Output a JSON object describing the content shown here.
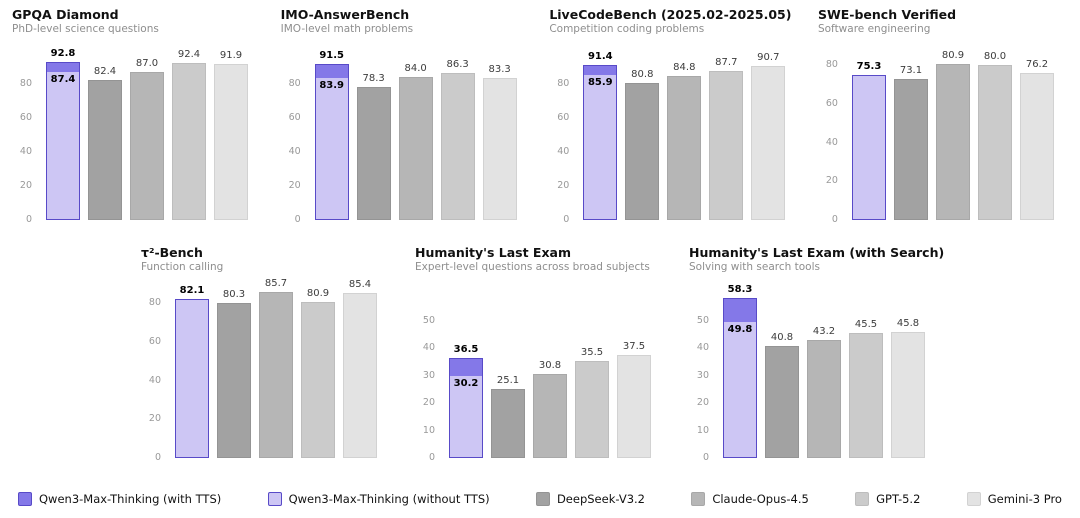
{
  "colors": {
    "background": "#ffffff",
    "purple_fill_light": "#cdc6f4",
    "purple_fill_dark": "#8478e8",
    "purple_border": "#584ac8"
  },
  "legend": [
    {
      "label": "Qwen3-Max-Thinking (with TTS)",
      "color": "#8478e8",
      "border": "#584ac8"
    },
    {
      "label": "Qwen3-Max-Thinking (without TTS)",
      "color": "#cdc6f4",
      "border": "#584ac8"
    },
    {
      "label": "DeepSeek-V3.2",
      "color": "#a2a2a2",
      "border": "#949494"
    },
    {
      "label": "Claude-Opus-4.5",
      "color": "#b6b6b6",
      "border": "#a8a8a8"
    },
    {
      "label": "GPT-5.2",
      "color": "#cbcbcb",
      "border": "#bdbdbd"
    },
    {
      "label": "Gemini-3 Pro",
      "color": "#e3e3e3",
      "border": "#d2d2d2"
    }
  ],
  "chart_data": [
    {
      "type": "bar",
      "title": "GPQA Diamond",
      "subtitle": "PhD-level science questions",
      "ylim": [
        0,
        100
      ],
      "ticks": [
        0,
        20,
        40,
        60,
        80
      ],
      "series": [
        {
          "name": "Qwen3-Max-Thinking (with TTS)",
          "value": 92.8
        },
        {
          "name": "Qwen3-Max-Thinking (without TTS)",
          "value": 87.4
        },
        {
          "name": "DeepSeek-V3.2",
          "value": 82.4
        },
        {
          "name": "Claude-Opus-4.5",
          "value": 87.0
        },
        {
          "name": "GPT-5.2",
          "value": 92.4
        },
        {
          "name": "Gemini-3 Pro",
          "value": 91.9
        }
      ]
    },
    {
      "type": "bar",
      "title": "IMO-AnswerBench",
      "subtitle": "IMO-level math problems",
      "ylim": [
        0,
        100
      ],
      "ticks": [
        0,
        20,
        40,
        60,
        80
      ],
      "series": [
        {
          "name": "Qwen3-Max-Thinking (with TTS)",
          "value": 91.5
        },
        {
          "name": "Qwen3-Max-Thinking (without TTS)",
          "value": 83.9
        },
        {
          "name": "DeepSeek-V3.2",
          "value": 78.3
        },
        {
          "name": "Claude-Opus-4.5",
          "value": 84.0
        },
        {
          "name": "GPT-5.2",
          "value": 86.3
        },
        {
          "name": "Gemini-3 Pro",
          "value": 83.3
        }
      ]
    },
    {
      "type": "bar",
      "title": "LiveCodeBench (2025.02-2025.05)",
      "subtitle": "Competition coding problems",
      "ylim": [
        0,
        100
      ],
      "ticks": [
        0,
        20,
        40,
        60,
        80
      ],
      "series": [
        {
          "name": "Qwen3-Max-Thinking (with TTS)",
          "value": 91.4
        },
        {
          "name": "Qwen3-Max-Thinking (without TTS)",
          "value": 85.9
        },
        {
          "name": "DeepSeek-V3.2",
          "value": 80.8
        },
        {
          "name": "Claude-Opus-4.5",
          "value": 84.8
        },
        {
          "name": "GPT-5.2",
          "value": 87.7
        },
        {
          "name": "Gemini-3 Pro",
          "value": 90.7
        }
      ]
    },
    {
      "type": "bar",
      "title": "SWE-bench Verified",
      "subtitle": "Software engineering",
      "ylim": [
        0,
        88
      ],
      "ticks": [
        0,
        20,
        40,
        60,
        80
      ],
      "series": [
        {
          "name": "Qwen3-Max-Thinking (with TTS)",
          "value": null
        },
        {
          "name": "Qwen3-Max-Thinking (without TTS)",
          "value": 75.3
        },
        {
          "name": "DeepSeek-V3.2",
          "value": 73.1
        },
        {
          "name": "Claude-Opus-4.5",
          "value": 80.9
        },
        {
          "name": "GPT-5.2",
          "value": 80.0
        },
        {
          "name": "Gemini-3 Pro",
          "value": 76.2
        }
      ]
    },
    {
      "type": "bar",
      "title": "τ²-Bench",
      "subtitle": "Function calling",
      "ylim": [
        0,
        88
      ],
      "ticks": [
        0,
        20,
        40,
        60,
        80
      ],
      "series": [
        {
          "name": "Qwen3-Max-Thinking (with TTS)",
          "value": null
        },
        {
          "name": "Qwen3-Max-Thinking (without TTS)",
          "value": 82.1
        },
        {
          "name": "DeepSeek-V3.2",
          "value": 80.3
        },
        {
          "name": "Claude-Opus-4.5",
          "value": 85.7
        },
        {
          "name": "GPT-5.2",
          "value": 80.9
        },
        {
          "name": "Gemini-3 Pro",
          "value": 85.4
        }
      ]
    },
    {
      "type": "bar",
      "title": "Humanity's Last Exam",
      "subtitle": "Expert-level questions across broad subjects",
      "ylim": [
        0,
        62
      ],
      "ticks": [
        0,
        10,
        20,
        30,
        40,
        50
      ],
      "series": [
        {
          "name": "Qwen3-Max-Thinking (with TTS)",
          "value": 36.5
        },
        {
          "name": "Qwen3-Max-Thinking (without TTS)",
          "value": 30.2
        },
        {
          "name": "DeepSeek-V3.2",
          "value": 25.1
        },
        {
          "name": "Claude-Opus-4.5",
          "value": 30.8
        },
        {
          "name": "GPT-5.2",
          "value": 35.5
        },
        {
          "name": "Gemini-3 Pro",
          "value": 37.5
        }
      ]
    },
    {
      "type": "bar",
      "title": "Humanity's Last Exam (with Search)",
      "subtitle": "Solving with search tools",
      "ylim": [
        0,
        62
      ],
      "ticks": [
        0,
        10,
        20,
        30,
        40,
        50
      ],
      "series": [
        {
          "name": "Qwen3-Max-Thinking (with TTS)",
          "value": 58.3
        },
        {
          "name": "Qwen3-Max-Thinking (without TTS)",
          "value": 49.8
        },
        {
          "name": "DeepSeek-V3.2",
          "value": 40.8
        },
        {
          "name": "Claude-Opus-4.5",
          "value": 43.2
        },
        {
          "name": "GPT-5.2",
          "value": 45.5
        },
        {
          "name": "Gemini-3 Pro",
          "value": 45.8
        }
      ]
    }
  ]
}
